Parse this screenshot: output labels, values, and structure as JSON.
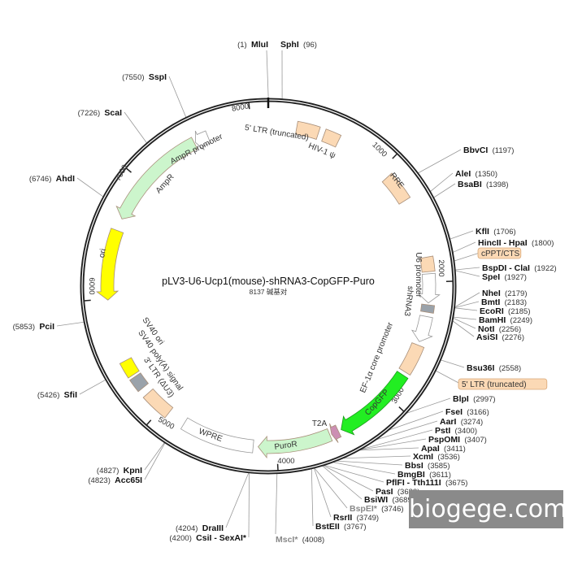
{
  "map": {
    "title": "pLV3-U6-Ucp1(mouse)-shRNA3-CopGFP-Puro",
    "subtitle": "8137 碱基对",
    "length_bp": 8137
  },
  "ticks": [
    "1000",
    "2000",
    "3000",
    "4000",
    "5000",
    "6000",
    "7000",
    "8000"
  ],
  "features": [
    {
      "name": "5' LTR (truncated)",
      "start": 230,
      "end": 410,
      "direction": 0,
      "color": "#fbd9b5"
    },
    {
      "name": "HIV-1 ψ",
      "start": 457,
      "end": 583,
      "direction": 0,
      "color": "#fbd9b5"
    },
    {
      "name": "RRE",
      "start": 1075,
      "end": 1310,
      "direction": 0,
      "color": "#fbd9b5"
    },
    {
      "name": "cPPT/CTS",
      "start": 1800,
      "end": 1918,
      "direction": 0,
      "color": "#fbd9b5"
    },
    {
      "name": "U6 promoter",
      "start": 1935,
      "end": 2170,
      "direction": 1,
      "color": "#ffffff"
    },
    {
      "name": "shRNA3",
      "start": 2185,
      "end": 2245,
      "direction": 0,
      "color": "#9aa2aa"
    },
    {
      "name": "EF-1α core promoter",
      "start": 2280,
      "end": 2490,
      "direction": 1,
      "color": "#ffffff"
    },
    {
      "name": "5' LTR (truncated)",
      "start": 2520,
      "end": 2760,
      "direction": 0,
      "color": "#fbd9b5"
    },
    {
      "name": "CopGFP",
      "start": 2790,
      "end": 3460,
      "direction": 1,
      "color": "#22ee22"
    },
    {
      "name": "T2A",
      "start": 3485,
      "end": 3545,
      "direction": 1,
      "color": "#cc8fb3"
    },
    {
      "name": "PuroR",
      "start": 3560,
      "end": 4150,
      "direction": 1,
      "color": "#ccf5cc"
    },
    {
      "name": "WPRE",
      "start": 4190,
      "end": 4780,
      "direction": 0,
      "color": "#ffffff"
    },
    {
      "name": "3' LTR (ΔU3)",
      "start": 4930,
      "end": 5160,
      "direction": 0,
      "color": "#fbd9b5"
    },
    {
      "name": "SV40 ori",
      "start": 5220,
      "end": 5330,
      "direction": 0,
      "color": "#9aa2aa"
    },
    {
      "name": "SV40 poly(A) signal",
      "start": 5350,
      "end": 5480,
      "direction": 0,
      "color": "#ffff00"
    },
    {
      "name": "ori",
      "start": 5990,
      "end": 6560,
      "direction": -1,
      "color": "#ffff00"
    },
    {
      "name": "AmpR",
      "start": 6660,
      "end": 7520,
      "direction": -1,
      "color": "#ccf5cc"
    },
    {
      "name": "AmpR promoter",
      "start": 7530,
      "end": 7640,
      "direction": -1,
      "color": "#ffffff"
    }
  ],
  "enzymes": [
    {
      "name": "MluI",
      "position": "1"
    },
    {
      "name": "SphI",
      "position": "96"
    },
    {
      "name": "BbvCI",
      "position": "1197"
    },
    {
      "name": "AleI",
      "position": "1350"
    },
    {
      "name": "BsaBI",
      "position": "1398"
    },
    {
      "name": "KflI",
      "position": "1706"
    },
    {
      "name": "HincII - HpaI",
      "position": "1800"
    },
    {
      "name": "BspDI - ClaI",
      "position": "1922"
    },
    {
      "name": "SpeI",
      "position": "1927"
    },
    {
      "name": "NheI",
      "position": "2179"
    },
    {
      "name": "BmtI",
      "position": "2183"
    },
    {
      "name": "EcoRI",
      "position": "2185"
    },
    {
      "name": "BamHI",
      "position": "2249"
    },
    {
      "name": "NotI",
      "position": "2256"
    },
    {
      "name": "AsiSI",
      "position": "2276"
    },
    {
      "name": "Bsu36I",
      "position": "2558"
    },
    {
      "name": "BlpI",
      "position": "2997"
    },
    {
      "name": "FseI",
      "position": "3166"
    },
    {
      "name": "AarI",
      "position": "3274"
    },
    {
      "name": "PstI",
      "position": "3400"
    },
    {
      "name": "PspOMI",
      "position": "3407"
    },
    {
      "name": "ApaI",
      "position": "3411"
    },
    {
      "name": "XcmI",
      "position": "3536"
    },
    {
      "name": "BbsI",
      "position": "3585"
    },
    {
      "name": "BmgBI",
      "position": "3611"
    },
    {
      "name": "PflFI - Tth111I",
      "position": "3675"
    },
    {
      "name": "PasI",
      "position": "3682"
    },
    {
      "name": "BsiWI",
      "position": "3689"
    },
    {
      "name": "BspEI*",
      "position": "3746",
      "nonunique": true
    },
    {
      "name": "RsrII",
      "position": "3749"
    },
    {
      "name": "BstEII",
      "position": "3767"
    },
    {
      "name": "MscI*",
      "position": "4008",
      "nonunique": true
    },
    {
      "name": "DraIII",
      "position": "4204"
    },
    {
      "name": "CsiI - SexAI*",
      "position": "4200"
    },
    {
      "name": "KpnI",
      "position": "4827"
    },
    {
      "name": "Acc65I",
      "position": "4823"
    },
    {
      "name": "SfiI",
      "position": "5426"
    },
    {
      "name": "PciI",
      "position": "5853"
    },
    {
      "name": "AhdI",
      "position": "6746"
    },
    {
      "name": "ScaI",
      "position": "7226"
    },
    {
      "name": "SspI",
      "position": "7550"
    }
  ],
  "boxed_labels": [
    {
      "text": "cPPT/CTS",
      "position": "1860"
    },
    {
      "text": "5' LTR (truncated)",
      "position": "2640"
    }
  ],
  "watermark": "biogege.com"
}
